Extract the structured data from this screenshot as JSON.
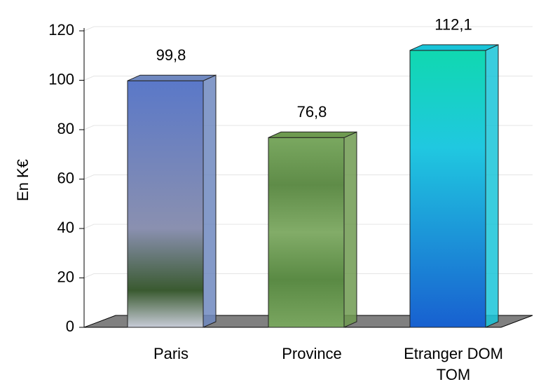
{
  "chart_data": {
    "type": "bar3d",
    "y_label": "En K€",
    "categories": [
      "Paris",
      "Province",
      "Etranger DOM TOM"
    ],
    "values": [
      99.8,
      76.8,
      112.1
    ],
    "value_labels": [
      "99,8",
      "76,8",
      "112,1"
    ],
    "colors": [
      "#6f88c0",
      "#6e9a50",
      "#18c4d8"
    ],
    "ylim": [
      0,
      120
    ],
    "yticks": [
      0,
      20,
      40,
      60,
      80,
      100,
      120
    ],
    "grid": true
  }
}
